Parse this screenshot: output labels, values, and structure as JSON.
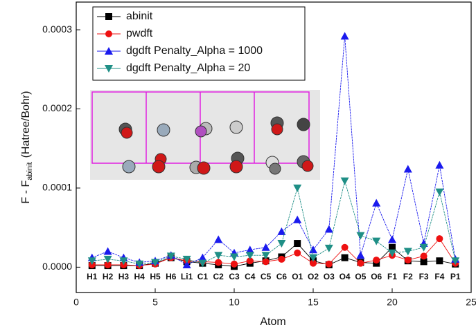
{
  "chart_data": {
    "type": "line",
    "x_label": "Atom",
    "y_label": "F - F",
    "y_label_sub": "abinit",
    "y_label_unit": "(Hatree/Bohr)",
    "x": [
      1,
      2,
      3,
      4,
      5,
      6,
      7,
      8,
      9,
      10,
      11,
      12,
      13,
      14,
      15,
      16,
      17,
      18,
      19,
      20,
      21,
      22,
      23,
      24
    ],
    "atom_labels": [
      "H1",
      "H2",
      "H3",
      "H4",
      "H5",
      "H6",
      "Li1",
      "C1",
      "C2",
      "C3",
      "C4",
      "C5",
      "C6",
      "O1",
      "O2",
      "O3",
      "O4",
      "O5",
      "O6",
      "F1",
      "F2",
      "F3",
      "F4",
      "P1"
    ],
    "xlim": [
      0,
      25
    ],
    "xticks": [
      0,
      5,
      10,
      15,
      20,
      25
    ],
    "ylim": [
      -3.2e-05,
      0.000335
    ],
    "yticks": [
      {
        "value": 0,
        "label": "0.0000"
      },
      {
        "value": 0.0001,
        "label": "0.0001"
      },
      {
        "value": 0.0002,
        "label": "0.0002"
      },
      {
        "value": 0.0003,
        "label": "0.0003"
      }
    ],
    "legend": "upper left",
    "series": [
      {
        "name": "abinit",
        "color": "#000000",
        "marker": "square",
        "values": [
          2e-06,
          2e-06,
          2e-06,
          2e-06,
          5e-06,
          1.2e-05,
          7e-06,
          5e-06,
          3e-06,
          1e-06,
          5e-06,
          8e-06,
          1.3e-05,
          3e-05,
          8e-06,
          3e-06,
          1.2e-05,
          6e-06,
          5e-06,
          2.5e-05,
          8e-06,
          7e-06,
          8e-06,
          4e-06
        ]
      },
      {
        "name": "pwdft",
        "color": "#ee1111",
        "marker": "circle",
        "values": [
          3e-06,
          3e-06,
          3e-06,
          2e-06,
          4e-06,
          1.2e-05,
          8e-06,
          7e-06,
          6e-06,
          4e-06,
          8e-06,
          7e-06,
          1e-05,
          1.8e-05,
          5e-06,
          4e-06,
          2.5e-05,
          5e-06,
          9e-06,
          1.5e-05,
          9e-06,
          1.4e-05,
          3.6e-05,
          5e-06
        ]
      },
      {
        "name": "dgdft Penalty_Alpha = 1000",
        "color": "#1a1aee",
        "marker": "triangle-up",
        "values": [
          1.2e-05,
          2e-05,
          1.2e-05,
          6e-06,
          8e-06,
          1.5e-05,
          3e-06,
          1.2e-05,
          3.5e-05,
          1.8e-05,
          2.2e-05,
          2.5e-05,
          4.5e-05,
          6e-05,
          2.2e-05,
          4.8e-05,
          0.000292,
          1.5e-05,
          8.1e-05,
          3.5e-05,
          0.000124,
          3e-05,
          0.000129,
          1e-05
        ]
      },
      {
        "name": "dgdft Penalty_Alpha = 20",
        "color": "#1f8f86",
        "marker": "triangle-down",
        "values": [
          8e-06,
          1e-05,
          8e-06,
          4e-06,
          6e-06,
          1.4e-05,
          1e-05,
          5e-06,
          1.5e-05,
          1.3e-05,
          1.5e-05,
          1.5e-05,
          3e-05,
          0.0001,
          1.2e-05,
          2.4e-05,
          0.000109,
          4e-05,
          3.3e-05,
          1.8e-05,
          2e-05,
          2.5e-05,
          9.5e-05,
          8e-06
        ]
      }
    ]
  }
}
